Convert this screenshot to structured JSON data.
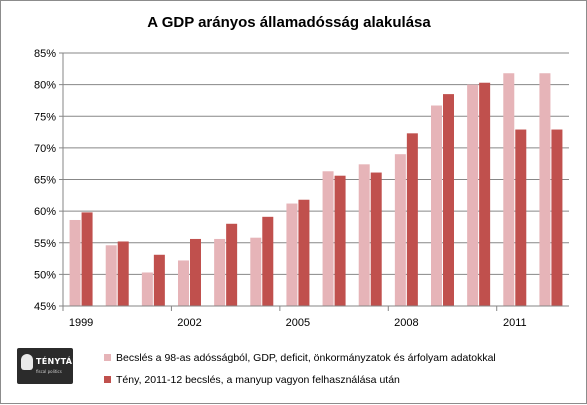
{
  "logo": {
    "name": "TÉNYTÁR",
    "tagline": "fiscal politics"
  },
  "colors": {
    "estimate": "#e6b4b8",
    "actual": "#c0504d",
    "grid": "#878787",
    "axis": "#868686"
  },
  "chart_data": {
    "type": "bar",
    "title": "A GDP arányos államadósság alakulása",
    "xlabel": "",
    "ylabel": "",
    "ylim": [
      45,
      85
    ],
    "yticks": [
      "45%",
      "50%",
      "55%",
      "60%",
      "65%",
      "70%",
      "75%",
      "80%",
      "85%"
    ],
    "grid": true,
    "legend_position": "bottom",
    "categories": [
      "1999",
      "2000",
      "2001",
      "2002",
      "2003",
      "2004",
      "2005",
      "2006",
      "2007",
      "2008",
      "2009",
      "2010",
      "2011",
      "2012"
    ],
    "tick_labels": [
      "1999",
      "",
      "",
      "2002",
      "",
      "",
      "2005",
      "",
      "",
      "2008",
      "",
      "",
      "2011",
      ""
    ],
    "series": [
      {
        "name": "Becslés a 98-as adósságból,  GDP, deficit, önkormányzatok  és árfolyam adatokkal",
        "values": [
          58.6,
          54.6,
          50.3,
          52.2,
          55.6,
          55.8,
          61.2,
          66.3,
          67.4,
          69.0,
          76.7,
          80.0,
          81.8,
          81.8
        ]
      },
      {
        "name": "Tény, 2011-12 becslés, a manyup vagyon felhasználása  után",
        "values": [
          59.8,
          55.2,
          53.1,
          55.6,
          58.0,
          59.1,
          61.8,
          65.6,
          66.1,
          72.3,
          78.5,
          80.3,
          72.9,
          72.9
        ]
      }
    ]
  }
}
